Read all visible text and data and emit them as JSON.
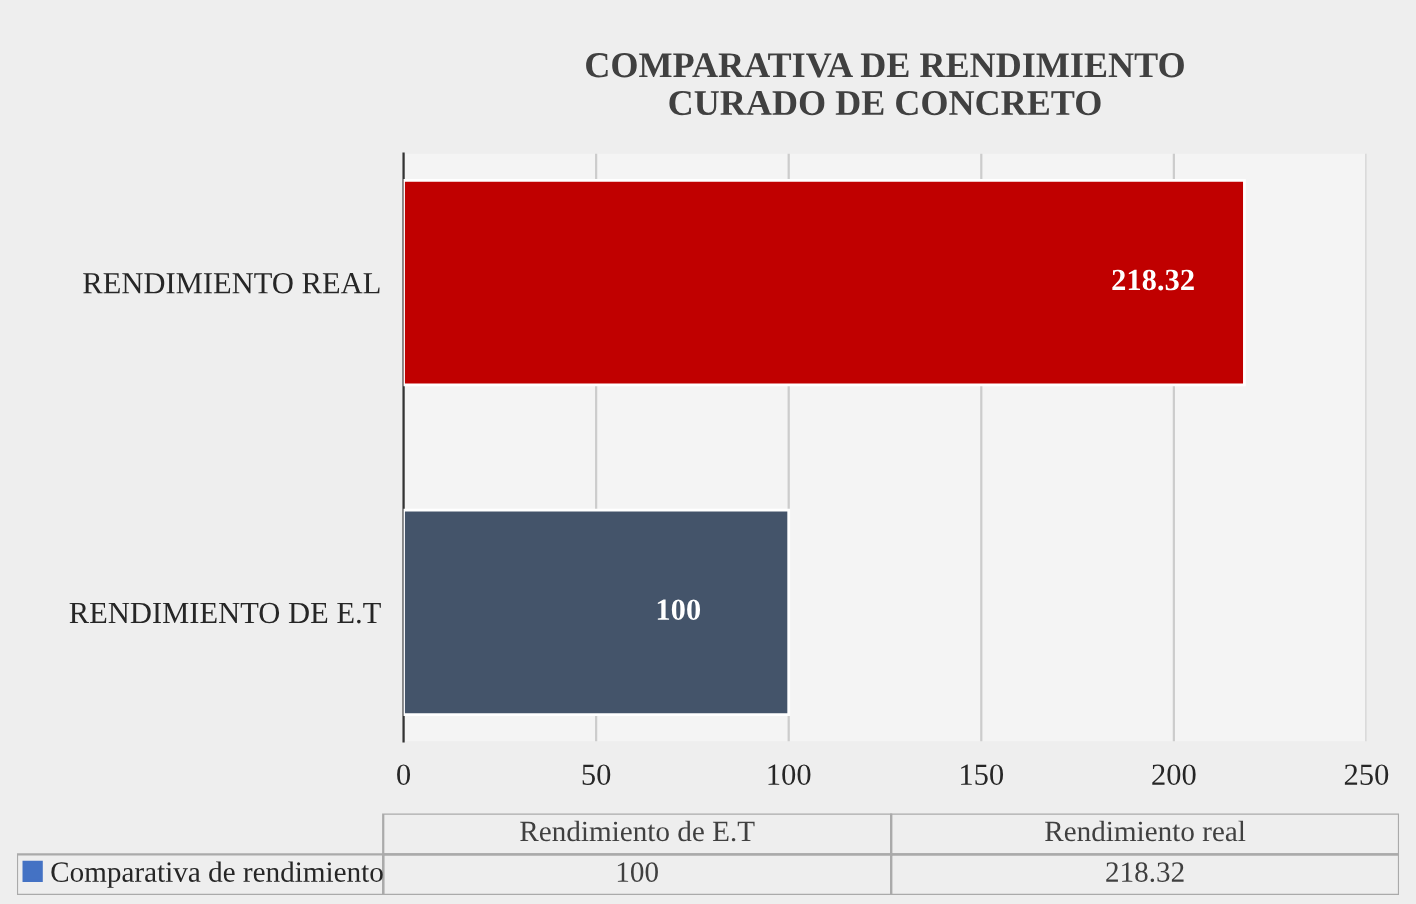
{
  "chart_data": [
    {
      "type": "bar",
      "orientation": "horizontal",
      "title": "COMPARATIVA DE RENDIMIENTO\nCURADO DE CONCRETO",
      "categories": [
        "RENDIMIENTO REAL",
        "RENDIMIENTO DE E.T"
      ],
      "values": [
        218.32,
        100
      ],
      "colors": [
        "#c00000",
        "#44546a"
      ],
      "data_labels": true,
      "xlim": [
        0,
        250
      ],
      "xticks": [
        0,
        50,
        100,
        150,
        200,
        250
      ],
      "grid": "x"
    },
    {
      "type": "other",
      "categories": [
        "Rendimiento de E.T",
        "Rendimiento real"
      ],
      "series": [
        {
          "name": "Comparativa de rendimiento",
          "color": "#4472c4",
          "values": [
            100,
            218.32
          ]
        }
      ],
      "data_labels": true,
      "legend": "left"
    }
  ]
}
